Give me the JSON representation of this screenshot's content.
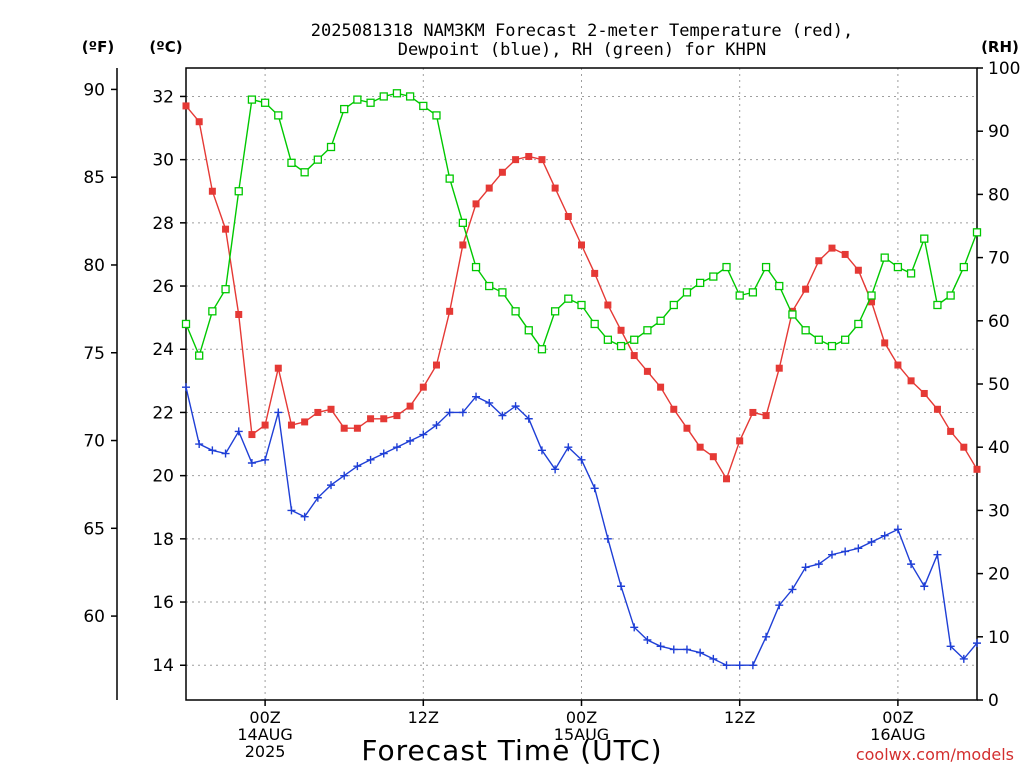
{
  "chart_data": {
    "type": "line",
    "title_lines": [
      "2025081318 NAM3KM Forecast 2-meter Temperature (red),",
      "Dewpoint (blue), RH (green) for KHPN"
    ],
    "xlabel": "Forecast Time (UTC)",
    "credit": "coolwx.com/models",
    "axis_titles": {
      "fahrenheit": "(ºF)",
      "celsius": "(ºC)",
      "rh": "(RH)"
    },
    "x_ticks": [
      {
        "hour": 6,
        "lines": [
          "00Z",
          "14AUG",
          "2025"
        ]
      },
      {
        "hour": 18,
        "lines": [
          "12Z"
        ]
      },
      {
        "hour": 30,
        "lines": [
          "00Z",
          "15AUG"
        ]
      },
      {
        "hour": 42,
        "lines": [
          "12Z"
        ]
      },
      {
        "hour": 54,
        "lines": [
          "00Z",
          "16AUG"
        ]
      }
    ],
    "xlim": [
      0,
      60
    ],
    "celsius_ylim": [
      12.9,
      32.9
    ],
    "celsius_ticks": [
      14,
      16,
      18,
      20,
      22,
      24,
      26,
      28,
      30,
      32
    ],
    "fahrenheit_ticks": [
      60,
      65,
      70,
      75,
      80,
      85,
      90
    ],
    "rh_ylim": [
      0,
      100
    ],
    "rh_ticks": [
      0,
      10,
      20,
      30,
      40,
      50,
      60,
      70,
      80,
      90,
      100
    ],
    "grid": true,
    "colors": {
      "temperature": "#e53935",
      "dewpoint": "#1f3fd6",
      "rh": "#00c800",
      "axis": "#000000",
      "credit": "#d32f2f"
    },
    "series": [
      {
        "name": "Temperature",
        "unit": "C",
        "marker": "filled-square",
        "color": "#e53935",
        "x": [
          0,
          1,
          2,
          3,
          4,
          5,
          6,
          7,
          8,
          9,
          10,
          11,
          12,
          13,
          14,
          15,
          16,
          17,
          18,
          19,
          20,
          21,
          22,
          23,
          24,
          25,
          26,
          27,
          28,
          29,
          30,
          31,
          32,
          33,
          34,
          35,
          36,
          37,
          38,
          39,
          40,
          41,
          42,
          43,
          44,
          45,
          46,
          47,
          48,
          49,
          50,
          51,
          52,
          53,
          54,
          55,
          56,
          57,
          58,
          59,
          60
        ],
        "values": [
          31.7,
          31.2,
          29.0,
          27.8,
          25.1,
          21.3,
          21.6,
          23.4,
          21.6,
          21.7,
          22.0,
          22.1,
          21.5,
          21.5,
          21.8,
          21.8,
          21.9,
          22.2,
          22.8,
          23.5,
          25.2,
          27.3,
          28.6,
          29.1,
          29.6,
          30.0,
          30.1,
          30.0,
          29.1,
          28.2,
          27.3,
          26.4,
          25.4,
          24.6,
          23.8,
          23.3,
          22.8,
          22.1,
          21.5,
          20.9,
          20.6,
          19.9,
          21.1,
          22.0,
          21.9,
          23.4,
          25.2,
          25.9,
          26.8,
          27.2,
          27.0,
          26.5,
          25.5,
          24.2,
          23.5,
          23.0,
          22.6,
          22.1,
          21.4,
          20.9,
          20.2
        ]
      },
      {
        "name": "Dewpoint",
        "unit": "C",
        "marker": "plus",
        "color": "#1f3fd6",
        "x": [
          0,
          1,
          2,
          3,
          4,
          5,
          6,
          7,
          8,
          9,
          10,
          11,
          12,
          13,
          14,
          15,
          16,
          17,
          18,
          19,
          20,
          21,
          22,
          23,
          24,
          25,
          26,
          27,
          28,
          29,
          30,
          31,
          32,
          33,
          34,
          35,
          36,
          37,
          38,
          39,
          40,
          41,
          42,
          43,
          44,
          45,
          46,
          47,
          48,
          49,
          50,
          51,
          52,
          53,
          54,
          55,
          56,
          57,
          58,
          59,
          60
        ],
        "values": [
          22.8,
          21.0,
          20.8,
          20.7,
          21.4,
          20.4,
          20.5,
          22.0,
          18.9,
          18.7,
          19.3,
          19.7,
          20.0,
          20.3,
          20.5,
          20.7,
          20.9,
          21.1,
          21.3,
          21.6,
          22.0,
          22.0,
          22.5,
          22.3,
          21.9,
          22.2,
          21.8,
          20.8,
          20.2,
          20.9,
          20.5,
          19.6,
          18.0,
          16.5,
          15.2,
          14.8,
          14.6,
          14.5,
          14.5,
          14.4,
          14.2,
          14.0,
          14.0,
          14.0,
          14.9,
          15.9,
          16.4,
          17.1,
          17.2,
          17.5,
          17.6,
          17.7,
          17.9,
          18.1,
          18.3,
          17.2,
          16.5,
          17.5,
          14.6,
          14.2,
          14.7
        ]
      },
      {
        "name": "RH",
        "unit": "%",
        "marker": "open-square",
        "color": "#00c800",
        "x": [
          0,
          1,
          2,
          3,
          4,
          5,
          6,
          7,
          8,
          9,
          10,
          11,
          12,
          13,
          14,
          15,
          16,
          17,
          18,
          19,
          20,
          21,
          22,
          23,
          24,
          25,
          26,
          27,
          28,
          29,
          30,
          31,
          32,
          33,
          34,
          35,
          36,
          37,
          38,
          39,
          40,
          41,
          42,
          43,
          44,
          45,
          46,
          47,
          48,
          49,
          50,
          51,
          52,
          53,
          54,
          55,
          56,
          57,
          58,
          59,
          60
        ],
        "values": [
          59.5,
          54.5,
          61.5,
          65.0,
          80.5,
          95.0,
          94.5,
          92.5,
          85.0,
          83.5,
          85.5,
          87.5,
          93.5,
          95.0,
          94.5,
          95.5,
          96.0,
          95.5,
          94.0,
          92.5,
          82.5,
          75.5,
          68.5,
          65.5,
          64.5,
          61.5,
          58.5,
          55.5,
          61.5,
          63.5,
          62.5,
          59.5,
          57.0,
          56.0,
          57.0,
          58.5,
          60.0,
          62.5,
          64.5,
          66.0,
          67.0,
          68.5,
          64.0,
          64.5,
          68.5,
          65.5,
          61.0,
          58.5,
          57.0,
          56.0,
          57.0,
          59.5,
          64.0,
          70.0,
          68.5,
          67.5,
          73.0,
          62.5,
          64.0,
          68.5,
          74.0
        ]
      }
    ]
  }
}
